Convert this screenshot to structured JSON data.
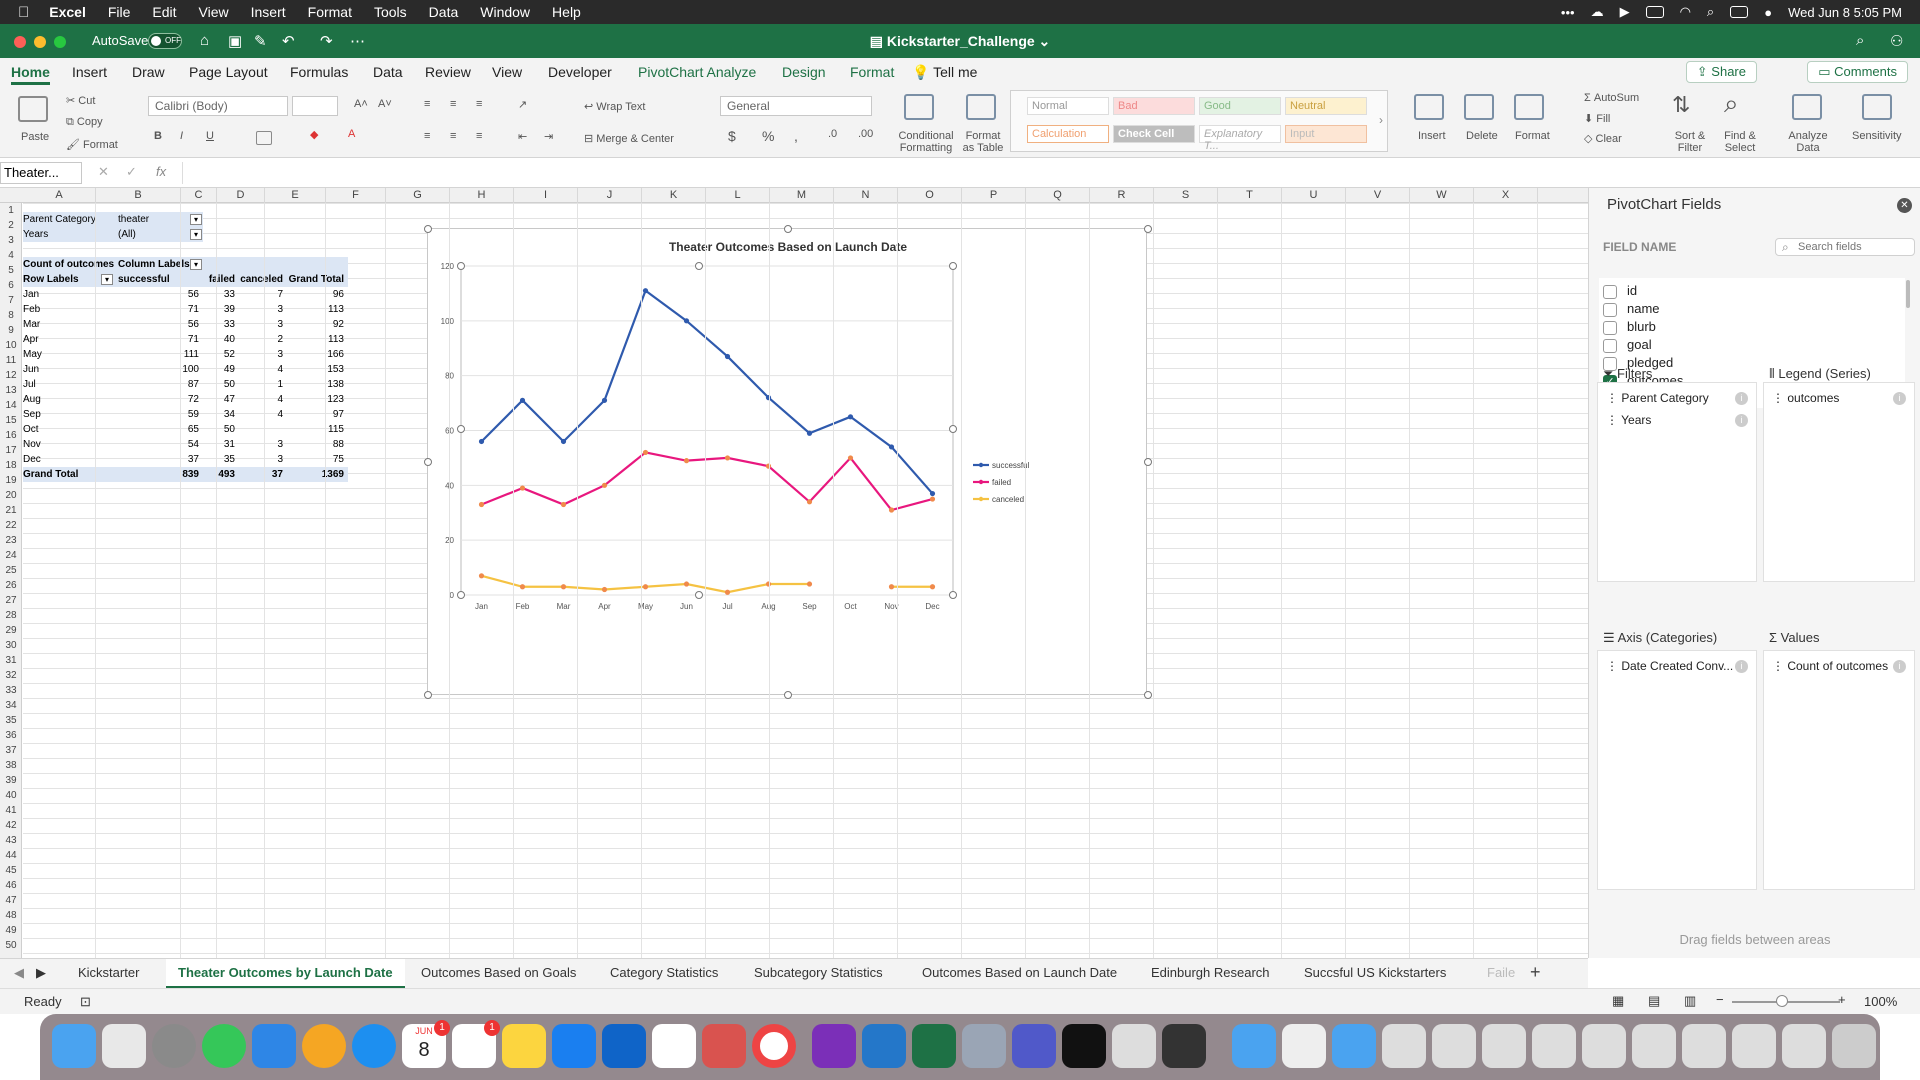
{
  "menubar": {
    "app": "Excel",
    "items": [
      "File",
      "Edit",
      "View",
      "Insert",
      "Format",
      "Tools",
      "Data",
      "Window",
      "Help"
    ],
    "datetime": "Wed Jun 8  5:05 PM"
  },
  "titlebar": {
    "autosave_label": "AutoSave",
    "autosave_state": "OFF",
    "document": "Kickstarter_Challenge"
  },
  "ribbon_tabs": [
    "Home",
    "Insert",
    "Draw",
    "Page Layout",
    "Formulas",
    "Data",
    "Review",
    "View",
    "Developer",
    "PivotChart Analyze",
    "Design",
    "Format"
  ],
  "tell_me": "Tell me",
  "share": "Share",
  "comments": "Comments",
  "ribbon": {
    "paste": "Paste",
    "cut": "Cut",
    "copy": "Copy",
    "format_painter": "Format",
    "font": "Calibri (Body)",
    "wrap_text": "Wrap Text",
    "merge_center": "Merge & Center",
    "number_format": "General",
    "conditional": "Conditional",
    "formatting": "Formatting",
    "format_as": "Format",
    "as_table": "as Table",
    "styles": [
      "Normal",
      "Bad",
      "Good",
      "Neutral",
      "Calculation",
      "Check Cell",
      "Explanatory T...",
      "Input"
    ],
    "insert": "Insert",
    "delete": "Delete",
    "format": "Format",
    "autosum": "AutoSum",
    "fill": "Fill",
    "clear": "Clear",
    "sort_filter_1": "Sort &",
    "sort_filter_2": "Filter",
    "find_select_1": "Find &",
    "find_select_2": "Select",
    "analyze_1": "Analyze",
    "analyze_2": "Data",
    "sensitivity": "Sensitivity"
  },
  "formula_bar": {
    "name_box": "Theater...",
    "fx": "fx"
  },
  "columns": [
    "A",
    "B",
    "C",
    "D",
    "E",
    "F",
    "G",
    "H",
    "I",
    "J",
    "K",
    "L",
    "M",
    "N",
    "O",
    "P",
    "Q",
    "R",
    "S",
    "T",
    "U",
    "V",
    "W",
    "X"
  ],
  "pivot": {
    "filter1_label": "Parent Category",
    "filter1_value": "theater",
    "filter2_label": "Years",
    "filter2_value": "(All)",
    "values_label": "Count of outcomes",
    "col_labels": "Column Labels",
    "row_labels": "Row Labels",
    "headers": [
      "successful",
      "failed",
      "canceled",
      "Grand Total"
    ],
    "rows": [
      [
        "Jan",
        "56",
        "33",
        "7",
        "96"
      ],
      [
        "Feb",
        "71",
        "39",
        "3",
        "113"
      ],
      [
        "Mar",
        "56",
        "33",
        "3",
        "92"
      ],
      [
        "Apr",
        "71",
        "40",
        "2",
        "113"
      ],
      [
        "May",
        "111",
        "52",
        "3",
        "166"
      ],
      [
        "Jun",
        "100",
        "49",
        "4",
        "153"
      ],
      [
        "Jul",
        "87",
        "50",
        "1",
        "138"
      ],
      [
        "Aug",
        "72",
        "47",
        "4",
        "123"
      ],
      [
        "Sep",
        "59",
        "34",
        "4",
        "97"
      ],
      [
        "Oct",
        "65",
        "50",
        "",
        "115"
      ],
      [
        "Nov",
        "54",
        "31",
        "3",
        "88"
      ],
      [
        "Dec",
        "37",
        "35",
        "3",
        "75"
      ]
    ],
    "total": [
      "Grand Total",
      "839",
      "493",
      "37",
      "1369"
    ]
  },
  "chart_data": {
    "type": "line",
    "title": "Theater Outcomes Based on Launch Date",
    "categories": [
      "Jan",
      "Feb",
      "Mar",
      "Apr",
      "May",
      "Jun",
      "Jul",
      "Aug",
      "Sep",
      "Oct",
      "Nov",
      "Dec"
    ],
    "series": [
      {
        "name": "successful",
        "color": "#2f5aad",
        "values": [
          56,
          71,
          56,
          71,
          111,
          100,
          87,
          72,
          59,
          65,
          54,
          37
        ]
      },
      {
        "name": "failed",
        "color": "#e8177e",
        "values": [
          33,
          39,
          33,
          40,
          52,
          49,
          50,
          47,
          34,
          50,
          31,
          35
        ]
      },
      {
        "name": "canceled",
        "color": "#f5c242",
        "values": [
          7,
          3,
          3,
          2,
          3,
          4,
          1,
          4,
          4,
          null,
          3,
          3
        ]
      }
    ],
    "ylim": [
      0,
      120
    ],
    "yticks": [
      0,
      20,
      40,
      60,
      80,
      100,
      120
    ],
    "legend": "right",
    "grid": true
  },
  "sidebar": {
    "title": "PivotChart Fields",
    "field_name": "FIELD NAME",
    "search_placeholder": "Search fields",
    "fields": [
      {
        "name": "id",
        "checked": false
      },
      {
        "name": "name",
        "checked": false
      },
      {
        "name": "blurb",
        "checked": false
      },
      {
        "name": "goal",
        "checked": false
      },
      {
        "name": "pledged",
        "checked": false
      },
      {
        "name": "outcomes",
        "checked": true
      }
    ],
    "filters_title": "Filters",
    "filters": [
      "Parent Category",
      "Years"
    ],
    "legend_title": "Legend (Series)",
    "legend_items": [
      "outcomes"
    ],
    "axis_title": "Axis (Categories)",
    "axis_items": [
      "Date Created Conv..."
    ],
    "values_title": "Values",
    "values_items": [
      "Count of outcomes"
    ],
    "drag_hint": "Drag fields between areas"
  },
  "sheet_tabs": [
    "Kickstarter",
    "Theater Outcomes by Launch Date",
    "Outcomes Based on Goals",
    "Category Statistics",
    "Subcategory Statistics",
    "Outcomes Based on Launch Date",
    "Edinburgh Research",
    "Succsful US Kickstarters",
    "Faile"
  ],
  "active_tab": 1,
  "status": {
    "ready": "Ready",
    "zoom": "100%"
  },
  "dock": {
    "calendar_month": "JUN",
    "calendar_day": "8",
    "badge": "1"
  }
}
